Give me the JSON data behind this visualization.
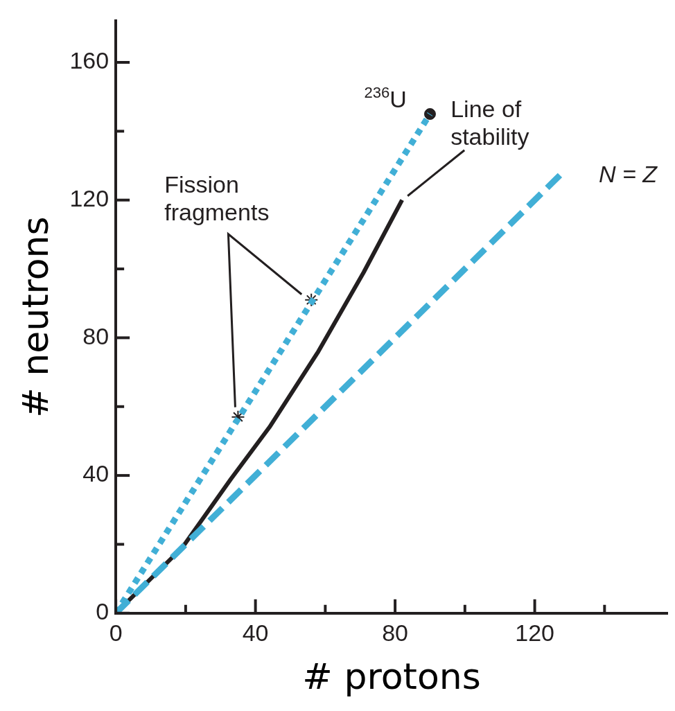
{
  "chart_data": {
    "type": "line",
    "xlabel": "# protons",
    "ylabel": "# neutrons",
    "xlim": [
      0,
      158
    ],
    "xticks": [
      0,
      {
        "value": 20,
        "label": null
      },
      40,
      {
        "value": 60,
        "label": null
      },
      80,
      {
        "value": 100,
        "label": null
      },
      120,
      {
        "value": 140,
        "label": null
      }
    ],
    "ylim": [
      0,
      172
    ],
    "yticks": [
      0,
      {
        "value": 20,
        "label": null
      },
      40,
      {
        "value": 60,
        "label": null
      },
      80,
      {
        "value": 100,
        "label": null
      },
      120,
      {
        "value": 140,
        "label": null
      },
      160
    ],
    "grid": false,
    "legend": false,
    "series": [
      {
        "type": "line",
        "color": "#41afd6",
        "line_style": "dashed",
        "marker": "none",
        "x": [
          0,
          128
        ],
        "values": [
          0,
          128
        ]
      },
      {
        "type": "line",
        "color": "#41afd6",
        "line_style": "dotted",
        "marker": "none",
        "x": [
          0,
          90
        ],
        "values": [
          0,
          145
        ]
      },
      {
        "type": "line",
        "color": "#231f20",
        "line_style": "solid",
        "marker": "none",
        "x": [
          0,
          10,
          19,
          33,
          44,
          58,
          71,
          82
        ],
        "values": [
          0,
          10,
          19,
          39,
          54,
          76,
          99,
          120
        ]
      },
      {
        "type": "scatter",
        "color": "#231f20",
        "marker": "circle",
        "x": [
          90
        ],
        "values": [
          145
        ]
      },
      {
        "type": "scatter",
        "color": "#231f20",
        "marker": "cross",
        "x": [
          35,
          56
        ],
        "values": [
          57,
          91
        ]
      }
    ],
    "annotations": [
      {
        "text": "$^{236}$U",
        "x": 90,
        "y": 145
      },
      "Line of stability",
      {
        "text": "N = Z",
        "x": 128,
        "y": 128
      },
      "Fission fragments"
    ]
  }
}
